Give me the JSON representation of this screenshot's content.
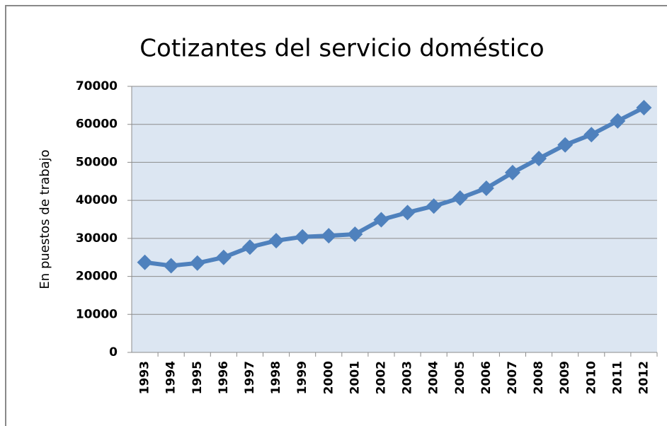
{
  "chart_data": {
    "type": "line",
    "title": "Cotizantes del servicio doméstico",
    "y_label": "En puestos de trabajo",
    "categories": [
      "1993",
      "1994",
      "1995",
      "1996",
      "1997",
      "1998",
      "1999",
      "2000",
      "2001",
      "2002",
      "2003",
      "2004",
      "2005",
      "2006",
      "2007",
      "2008",
      "2009",
      "2010",
      "2011",
      "2012"
    ],
    "series": [
      {
        "name": "Cotizantes",
        "color": "#4f81bd",
        "values": [
          23700,
          22800,
          23500,
          25000,
          27700,
          29400,
          30400,
          30700,
          31100,
          34900,
          36800,
          38500,
          40600,
          43200,
          47300,
          51000,
          54600,
          57300,
          60900,
          64400
        ]
      }
    ],
    "ylim": [
      0,
      70000
    ],
    "yticks": [
      0,
      10000,
      20000,
      30000,
      40000,
      50000,
      60000,
      70000
    ],
    "grid": true,
    "plot_background": "#dce6f2"
  }
}
